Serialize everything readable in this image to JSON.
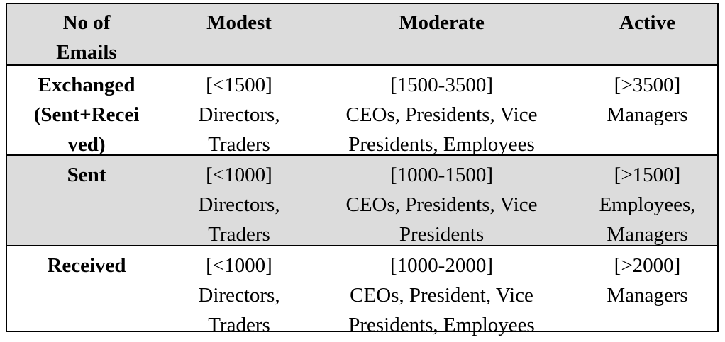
{
  "header": {
    "col1": [
      "No of",
      "Emails"
    ],
    "col2": [
      "Modest"
    ],
    "col3": [
      "Moderate"
    ],
    "col4": [
      "Active"
    ]
  },
  "rows": [
    {
      "label": [
        "Exchanged",
        "(Sent+Recei",
        "ved)"
      ],
      "modest": [
        "[<1500]",
        "Directors,",
        "Traders"
      ],
      "moderate": [
        "[1500-3500]",
        "CEOs, Presidents, Vice",
        "Presidents, Employees"
      ],
      "active": [
        "[>3500]",
        "Managers"
      ]
    },
    {
      "label": [
        "Sent"
      ],
      "modest": [
        "[<1000]",
        "Directors,",
        "Traders"
      ],
      "moderate": [
        "[1000-1500]",
        "CEOs, Presidents, Vice",
        "Presidents"
      ],
      "active": [
        "[>1500]",
        "Employees,",
        "Managers"
      ]
    },
    {
      "label": [
        "Received"
      ],
      "modest": [
        "[<1000]",
        "Directors,",
        "Traders"
      ],
      "moderate": [
        "[1000-2000]",
        "CEOs, President, Vice",
        "Presidents, Employees"
      ],
      "active": [
        "[>2000]",
        "Managers"
      ]
    }
  ],
  "colors": {
    "shaded_row": "#dcdcdc",
    "plain_row": "#ffffff",
    "border": "#000000"
  }
}
